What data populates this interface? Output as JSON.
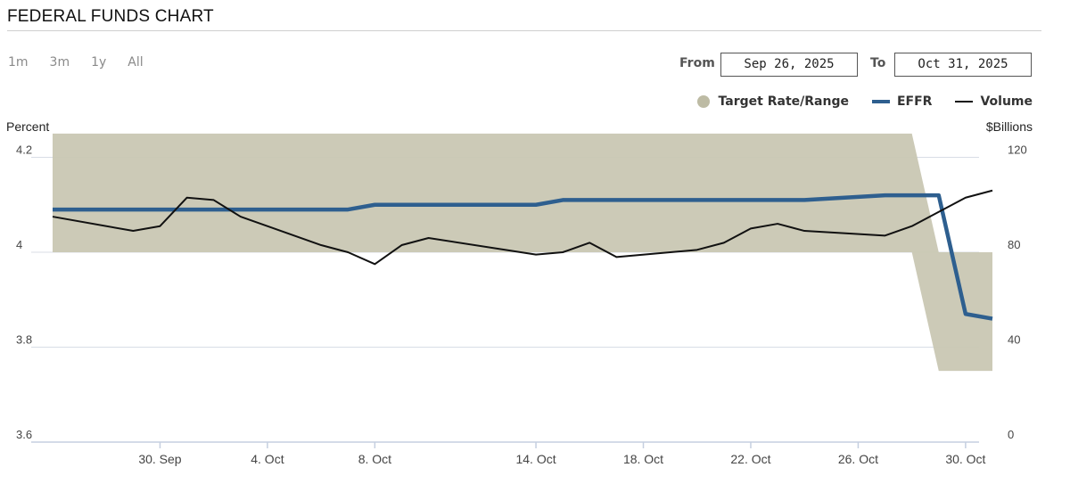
{
  "header": {
    "title": "FEDERAL FUNDS CHART"
  },
  "range_buttons": [
    "1m",
    "3m",
    "1y",
    "All"
  ],
  "date_range": {
    "from_label": "From",
    "from_value": "Sep 26, 2025",
    "to_label": "To",
    "to_value": "Oct 31, 2025"
  },
  "legend": [
    {
      "label": "Target Rate/Range",
      "color": "#bdbba4",
      "shape": "dot"
    },
    {
      "label": "EFFR",
      "color": "#2e5f8f",
      "shape": "thick-line"
    },
    {
      "label": "Volume",
      "color": "#111111",
      "shape": "thin-line"
    }
  ],
  "axis_titles": {
    "left": "Percent",
    "right": "$Billions"
  },
  "chart_data": {
    "type": "line",
    "title": "FEDERAL FUNDS CHART",
    "ylabel": "Percent",
    "y2label": "$Billions",
    "ylim": [
      3.6,
      4.4
    ],
    "y2lim": [
      0,
      160
    ],
    "yticks": [
      "4.2",
      "4",
      "3.8",
      "3.6"
    ],
    "y2ticks": [
      "120",
      "80",
      "40",
      "0"
    ],
    "xticks": [
      "30. Sep",
      "4. Oct",
      "8. Oct",
      "14. Oct",
      "18. Oct",
      "22. Oct",
      "26. Oct",
      "30. Oct"
    ],
    "series": [
      {
        "name": "Target Rate/Range",
        "kind": "band",
        "color": "#c9c7b3",
        "x": [
          "2025-09-26",
          "2025-10-28",
          "2025-10-29",
          "2025-10-31"
        ],
        "low": [
          4.0,
          4.0,
          3.75,
          3.75
        ],
        "high": [
          4.25,
          4.25,
          4.0,
          4.0
        ]
      },
      {
        "name": "EFFR",
        "kind": "line",
        "color": "#2e5f8f",
        "x": [
          "2025-09-26",
          "2025-09-29",
          "2025-09-30",
          "2025-10-01",
          "2025-10-02",
          "2025-10-03",
          "2025-10-06",
          "2025-10-07",
          "2025-10-08",
          "2025-10-09",
          "2025-10-10",
          "2025-10-14",
          "2025-10-15",
          "2025-10-16",
          "2025-10-17",
          "2025-10-20",
          "2025-10-21",
          "2025-10-22",
          "2025-10-23",
          "2025-10-24",
          "2025-10-27",
          "2025-10-28",
          "2025-10-29",
          "2025-10-30",
          "2025-10-31"
        ],
        "values": [
          4.09,
          4.09,
          4.09,
          4.09,
          4.09,
          4.09,
          4.09,
          4.09,
          4.1,
          4.1,
          4.1,
          4.1,
          4.11,
          4.11,
          4.11,
          4.11,
          4.11,
          4.11,
          4.11,
          4.11,
          4.12,
          4.12,
          4.12,
          3.87,
          3.86
        ]
      },
      {
        "name": "Volume",
        "kind": "line",
        "axis": "right",
        "color": "#111111",
        "x": [
          "2025-09-26",
          "2025-09-29",
          "2025-09-30",
          "2025-10-01",
          "2025-10-02",
          "2025-10-03",
          "2025-10-06",
          "2025-10-07",
          "2025-10-08",
          "2025-10-09",
          "2025-10-10",
          "2025-10-14",
          "2025-10-15",
          "2025-10-16",
          "2025-10-17",
          "2025-10-20",
          "2025-10-21",
          "2025-10-22",
          "2025-10-23",
          "2025-10-24",
          "2025-10-27",
          "2025-10-28",
          "2025-10-29",
          "2025-10-30",
          "2025-10-31"
        ],
        "values": [
          95,
          89,
          91,
          103,
          102,
          95,
          83,
          80,
          75,
          83,
          86,
          79,
          80,
          84,
          78,
          81,
          84,
          90,
          92,
          89,
          87,
          91,
          97,
          103,
          106
        ]
      }
    ]
  }
}
